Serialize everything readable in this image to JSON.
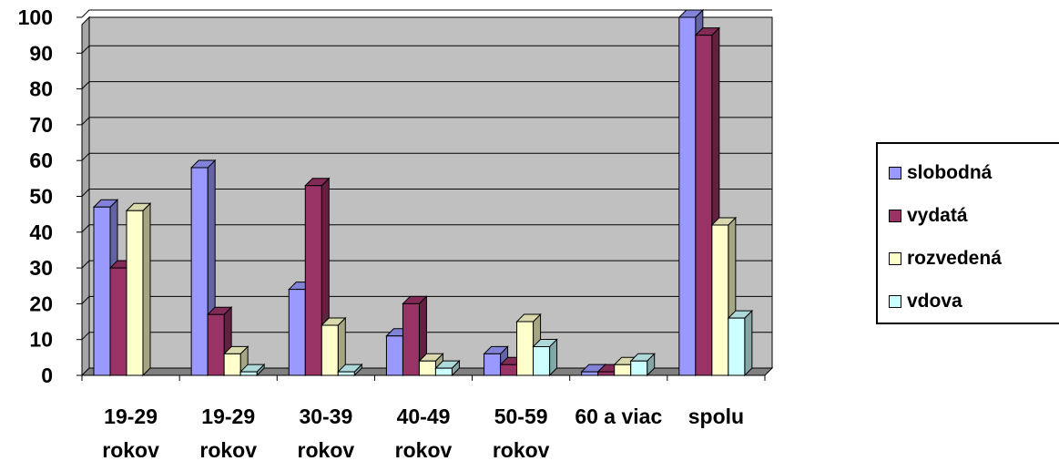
{
  "chart_data": {
    "type": "bar",
    "categories": [
      "19-29 rokov",
      "19-29 rokov",
      "30-39 rokov",
      "40-49 rokov",
      "50-59 rokov",
      "60 a viac",
      "spolu"
    ],
    "series": [
      {
        "name": "slobodná",
        "color": "#9999FF",
        "values": [
          47,
          58,
          24,
          11,
          6,
          1,
          100
        ]
      },
      {
        "name": "vydatá",
        "color": "#993366",
        "values": [
          30,
          17,
          53,
          20,
          3,
          1,
          95
        ]
      },
      {
        "name": "rozvedená",
        "color": "#FFFFCC",
        "values": [
          46,
          6,
          14,
          4,
          15,
          3,
          42
        ]
      },
      {
        "name": "vdova",
        "color": "#CCFFFF",
        "values": [
          0,
          1,
          1,
          2,
          8,
          4,
          16
        ]
      }
    ],
    "ylim": [
      0,
      100
    ],
    "yticks": [
      0,
      10,
      20,
      30,
      40,
      50,
      60,
      70,
      80,
      90,
      100
    ],
    "grid": true,
    "legend_position": "right",
    "plot_background": "#C0C0C0"
  }
}
